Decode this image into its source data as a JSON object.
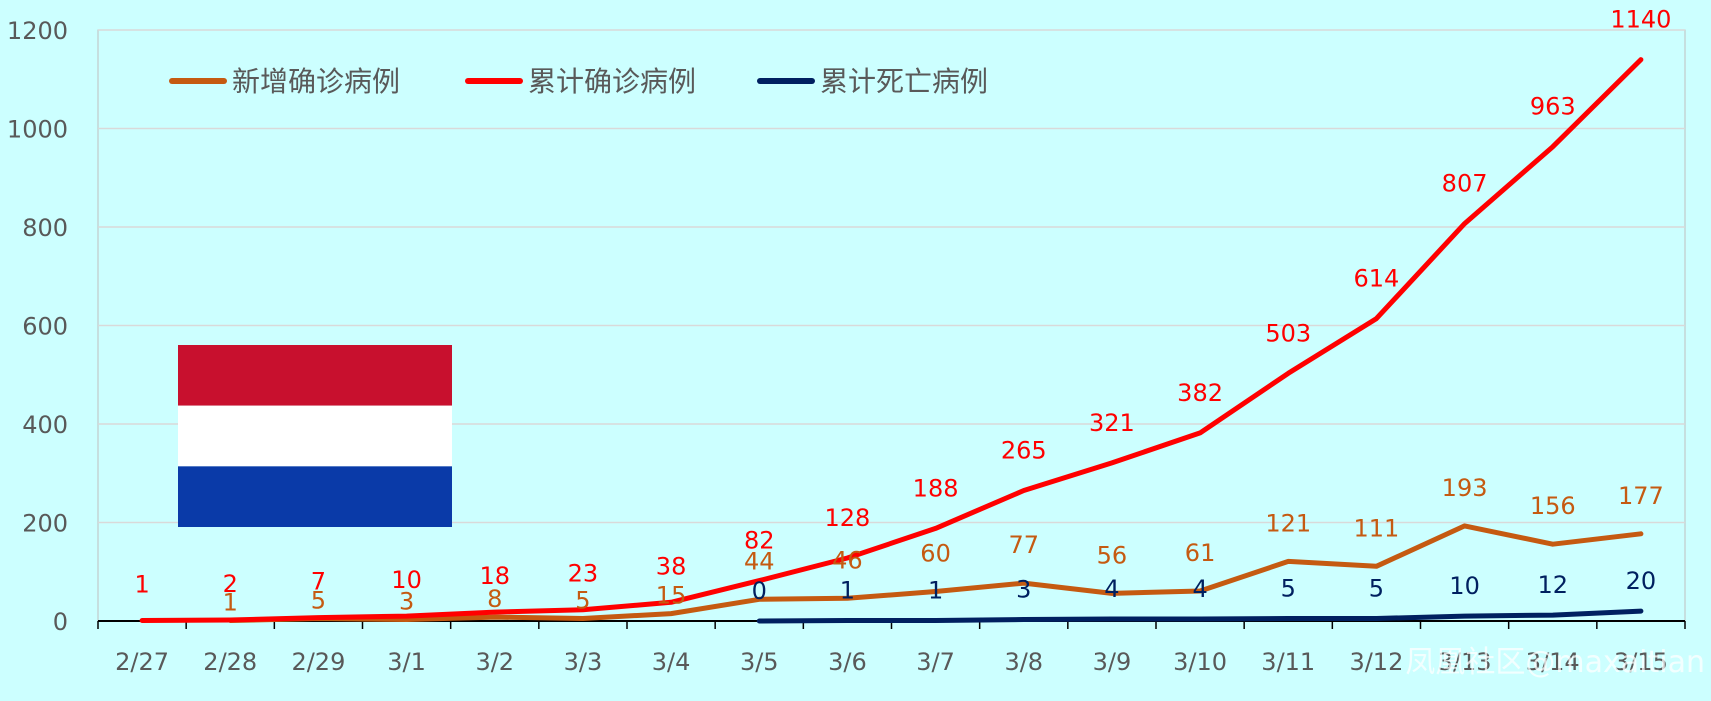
{
  "chart_data": {
    "type": "line",
    "title": "",
    "xlabel": "",
    "ylabel": "",
    "categories": [
      "2/27",
      "2/28",
      "2/29",
      "3/1",
      "3/2",
      "3/3",
      "3/4",
      "3/5",
      "3/6",
      "3/7",
      "3/8",
      "3/9",
      "3/10",
      "3/11",
      "3/12",
      "3/13",
      "3/14",
      "3/15"
    ],
    "ylim": [
      0,
      1200
    ],
    "yticks": [
      0,
      200,
      400,
      600,
      800,
      1000,
      1200
    ],
    "grid": true,
    "legend_position": "top-left",
    "series": [
      {
        "name": "新增确诊病例",
        "color": "#c55a11",
        "values": [
          null,
          1,
          5,
          3,
          8,
          5,
          15,
          44,
          46,
          60,
          77,
          56,
          61,
          121,
          111,
          193,
          156,
          177
        ],
        "labels": [
          "",
          "1",
          "5",
          "3",
          "8",
          "5",
          "15",
          "44",
          "46",
          "60",
          "77",
          "56",
          "61",
          "121",
          "111",
          "193",
          "156",
          "177"
        ]
      },
      {
        "name": "累计确诊病例",
        "color": "#ff0000",
        "values": [
          1,
          2,
          7,
          10,
          18,
          23,
          38,
          82,
          128,
          188,
          265,
          321,
          382,
          503,
          614,
          807,
          963,
          1140
        ],
        "labels": [
          "1",
          "2",
          "7",
          "10",
          "18",
          "23",
          "38",
          "82",
          "128",
          "188",
          "265",
          "321",
          "382",
          "503",
          "614",
          "807",
          "963",
          "1140"
        ]
      },
      {
        "name": "累计死亡病例",
        "color": "#002060",
        "values": [
          null,
          null,
          null,
          null,
          null,
          null,
          null,
          0,
          1,
          1,
          3,
          4,
          4,
          5,
          5,
          10,
          12,
          20
        ],
        "labels": [
          "",
          "",
          "",
          "",
          "",
          "",
          "",
          "0",
          "1",
          "1",
          "3",
          "4",
          "4",
          "5",
          "5",
          "10",
          "12",
          "20"
        ]
      }
    ],
    "flag_colors": [
      "#c8102e",
      "#ffffff",
      "#0a3aa8"
    ],
    "watermark": "凤凰社区@maxaitian"
  },
  "colors": {
    "background": "#ccffff",
    "grid": "#d9d9d9",
    "axis": "#000000"
  }
}
